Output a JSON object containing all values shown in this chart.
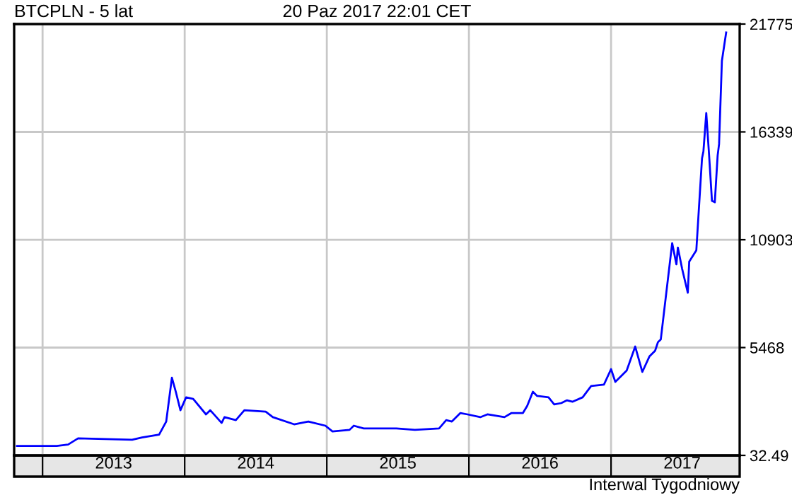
{
  "chart_data": {
    "type": "line",
    "title": "BTCPLN - 5 lat",
    "subtitle": "20 Paz 2017 22:01 CET",
    "annotations": [
      "Interwal Tygodniowy"
    ],
    "x": [
      2012.82,
      2013.1,
      2013.18,
      2013.25,
      2013.63,
      2013.7,
      2013.82,
      2013.87,
      2013.91,
      2013.94,
      2013.97,
      2014.01,
      2014.06,
      2014.15,
      2014.18,
      2014.26,
      2014.28,
      2014.36,
      2014.42,
      2014.57,
      2014.62,
      2014.77,
      2014.87,
      2014.99,
      2015.04,
      2015.16,
      2015.19,
      2015.26,
      2015.49,
      2015.62,
      2015.79,
      2015.84,
      2015.88,
      2015.94,
      2015.99,
      2016.08,
      2016.13,
      2016.25,
      2016.3,
      2016.38,
      2016.41,
      2016.45,
      2016.48,
      2016.56,
      2016.6,
      2016.65,
      2016.69,
      2016.73,
      2016.8,
      2016.86,
      2016.95,
      2017.0,
      2017.03,
      2017.11,
      2017.17,
      2017.22,
      2017.27,
      2017.31,
      2017.33,
      2017.35,
      2017.43,
      2017.46,
      2017.47,
      2017.5,
      2017.54,
      2017.55,
      2017.6,
      2017.64,
      2017.65,
      2017.67,
      2017.69,
      2017.71,
      2017.73,
      2017.75,
      2017.76,
      2017.78,
      2017.81
    ],
    "series": [
      {
        "color": "#0000ff",
        "values": [
          510,
          510,
          580,
          890,
          820,
          940,
          1080,
          1740,
          3950,
          3170,
          2310,
          2960,
          2880,
          2100,
          2310,
          1670,
          1960,
          1810,
          2310,
          2240,
          1960,
          1600,
          1740,
          1530,
          1240,
          1320,
          1530,
          1390,
          1390,
          1320,
          1390,
          1810,
          1740,
          2170,
          2100,
          1960,
          2100,
          1960,
          2170,
          2170,
          2530,
          3240,
          3030,
          2960,
          2600,
          2670,
          2810,
          2740,
          2960,
          3530,
          3600,
          4380,
          3740,
          4310,
          5520,
          4240,
          5020,
          5310,
          5740,
          5880,
          10730,
          9660,
          10510,
          9440,
          8230,
          9800,
          10370,
          15000,
          15360,
          17290,
          15150,
          12860,
          12790,
          15150,
          15720,
          19920,
          21350
        ]
      }
    ],
    "xlim": [
      2012.8,
      2017.905
    ],
    "xticks": [
      {
        "value": 2013,
        "label": null
      },
      {
        "value": 2013.5,
        "label": "2013"
      },
      {
        "value": 2014,
        "label": null
      },
      {
        "value": 2014.5,
        "label": "2014"
      },
      {
        "value": 2015,
        "label": null
      },
      {
        "value": 2015.5,
        "label": "2015"
      },
      {
        "value": 2016,
        "label": null
      },
      {
        "value": 2016.5,
        "label": "2016"
      },
      {
        "value": 2017,
        "label": null
      },
      {
        "value": 2017.5,
        "label": "2017"
      }
    ],
    "ylim": [
      32.49,
      21775
    ],
    "yticks": [
      {
        "value": 32.49,
        "label": "32.49"
      },
      5468,
      10903,
      16339,
      21775
    ],
    "grid": true,
    "marker": "none",
    "line_style": "solid"
  }
}
